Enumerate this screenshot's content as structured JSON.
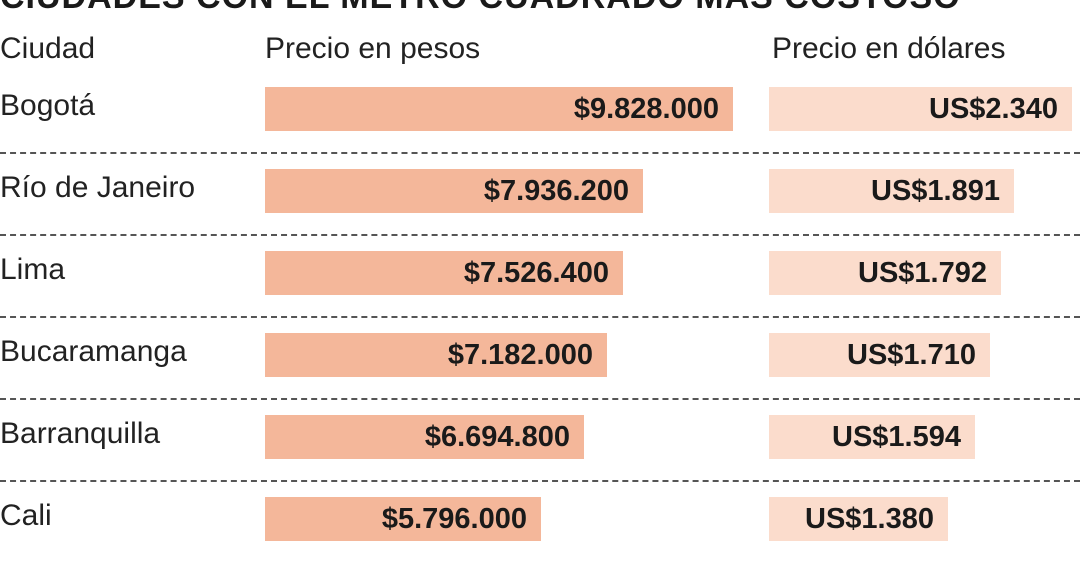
{
  "title": "CIUDADES CON EL METRO CUADRADO MÁS COSTOSO",
  "colors": {
    "pesos_bar": "#f4b79a",
    "usd_bar": "#fbdccc",
    "separator": "#555555"
  },
  "chart_data": {
    "type": "bar",
    "title": "CIUDADES CON EL METRO CUADRADO MÁS COSTOSO",
    "columns": [
      "Ciudad",
      "Precio en pesos",
      "Precio en dólares"
    ],
    "categories": [
      "Bogotá",
      "Río de Janeiro",
      "Lima",
      "Bucaramanga",
      "Barranquilla",
      "Cali"
    ],
    "series": [
      {
        "name": "Precio en pesos",
        "values": [
          9828000,
          7936200,
          7526400,
          7182000,
          6694800,
          5796000
        ],
        "labels": [
          "$9.828.000",
          "$7.936.200",
          "$7.526.400",
          "$7.182.000",
          "$6.694.800",
          "$5.796.000"
        ]
      },
      {
        "name": "Precio en dólares",
        "values": [
          2340,
          1891,
          1792,
          1710,
          1594,
          1380
        ],
        "labels": [
          "US$2.340",
          "US$1.891",
          "US$1.792",
          "US$1.710",
          "US$1.594",
          "US$1.380"
        ]
      }
    ]
  }
}
